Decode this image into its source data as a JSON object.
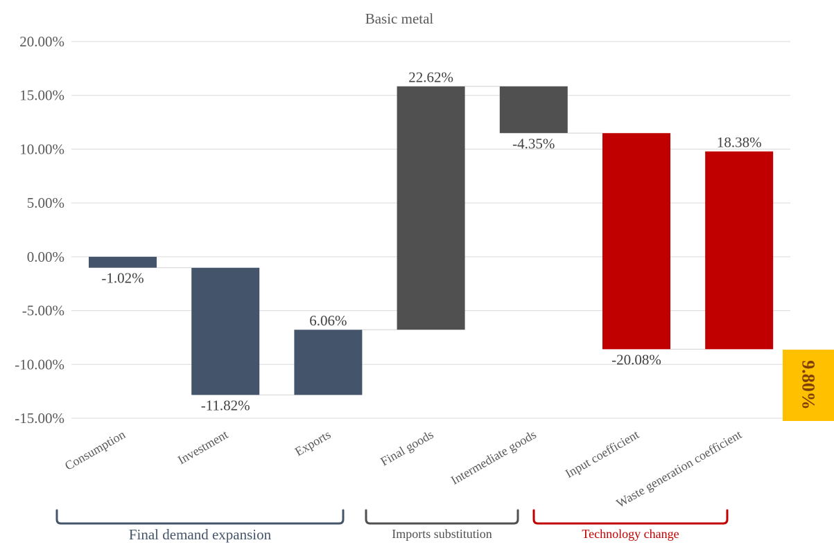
{
  "chart_data": {
    "type": "waterfall",
    "title": "Basic metal",
    "xlabel": "",
    "ylabel": "",
    "ylim": [
      -15,
      20
    ],
    "y_tick_values": [
      20,
      15,
      10,
      5,
      0,
      -5,
      -10,
      -15
    ],
    "y_tick_labels": [
      "20.00%",
      "15.00%",
      "10.00%",
      "5.00%",
      "0.00%",
      "-5.00%",
      "-10.00%",
      "-15.00%"
    ],
    "grid": true,
    "legend": "none",
    "categories": [
      "Consumption",
      "Investment",
      "Exports",
      "Final goods",
      "Intermediate goods",
      "Input coefficient",
      "Waste generation coefficient"
    ],
    "bars": [
      {
        "category": "Consumption",
        "start": 0,
        "end": -1.02,
        "label": "-1.02%",
        "color": "#44546a",
        "group": "Final demand expansion"
      },
      {
        "category": "Investment",
        "start": -1.02,
        "end": -12.84,
        "label": "-11.82%",
        "color": "#44546a",
        "group": "Final demand expansion"
      },
      {
        "category": "Exports",
        "start": -12.84,
        "end": -6.78,
        "label": "6.06%",
        "color": "#44546a",
        "group": "Final demand expansion"
      },
      {
        "category": "Final goods",
        "start": -6.78,
        "end": 15.84,
        "label": "22.62%",
        "color": "#505050",
        "group": "Imports substitution"
      },
      {
        "category": "Intermediate goods",
        "start": 15.84,
        "end": 11.49,
        "label": "-4.35%",
        "color": "#505050",
        "group": "Imports substitution"
      },
      {
        "category": "Input coefficient",
        "start": 11.49,
        "end": -8.59,
        "label": "-20.08%",
        "color": "#c00000",
        "group": "Technology change"
      },
      {
        "category": "Waste generation coefficient",
        "start": -8.59,
        "end": 9.79,
        "label": "18.38%",
        "color": "#c00000",
        "group": "Technology change"
      }
    ],
    "groups": [
      {
        "label": "Final demand expansion",
        "color": "#44546a"
      },
      {
        "label": "Imports substitution",
        "color": "#505050"
      },
      {
        "label": "Technology change",
        "color": "#c00000"
      }
    ],
    "total": {
      "label": "9.80%",
      "background": "#ffc000",
      "color": "#7f3f00"
    }
  }
}
